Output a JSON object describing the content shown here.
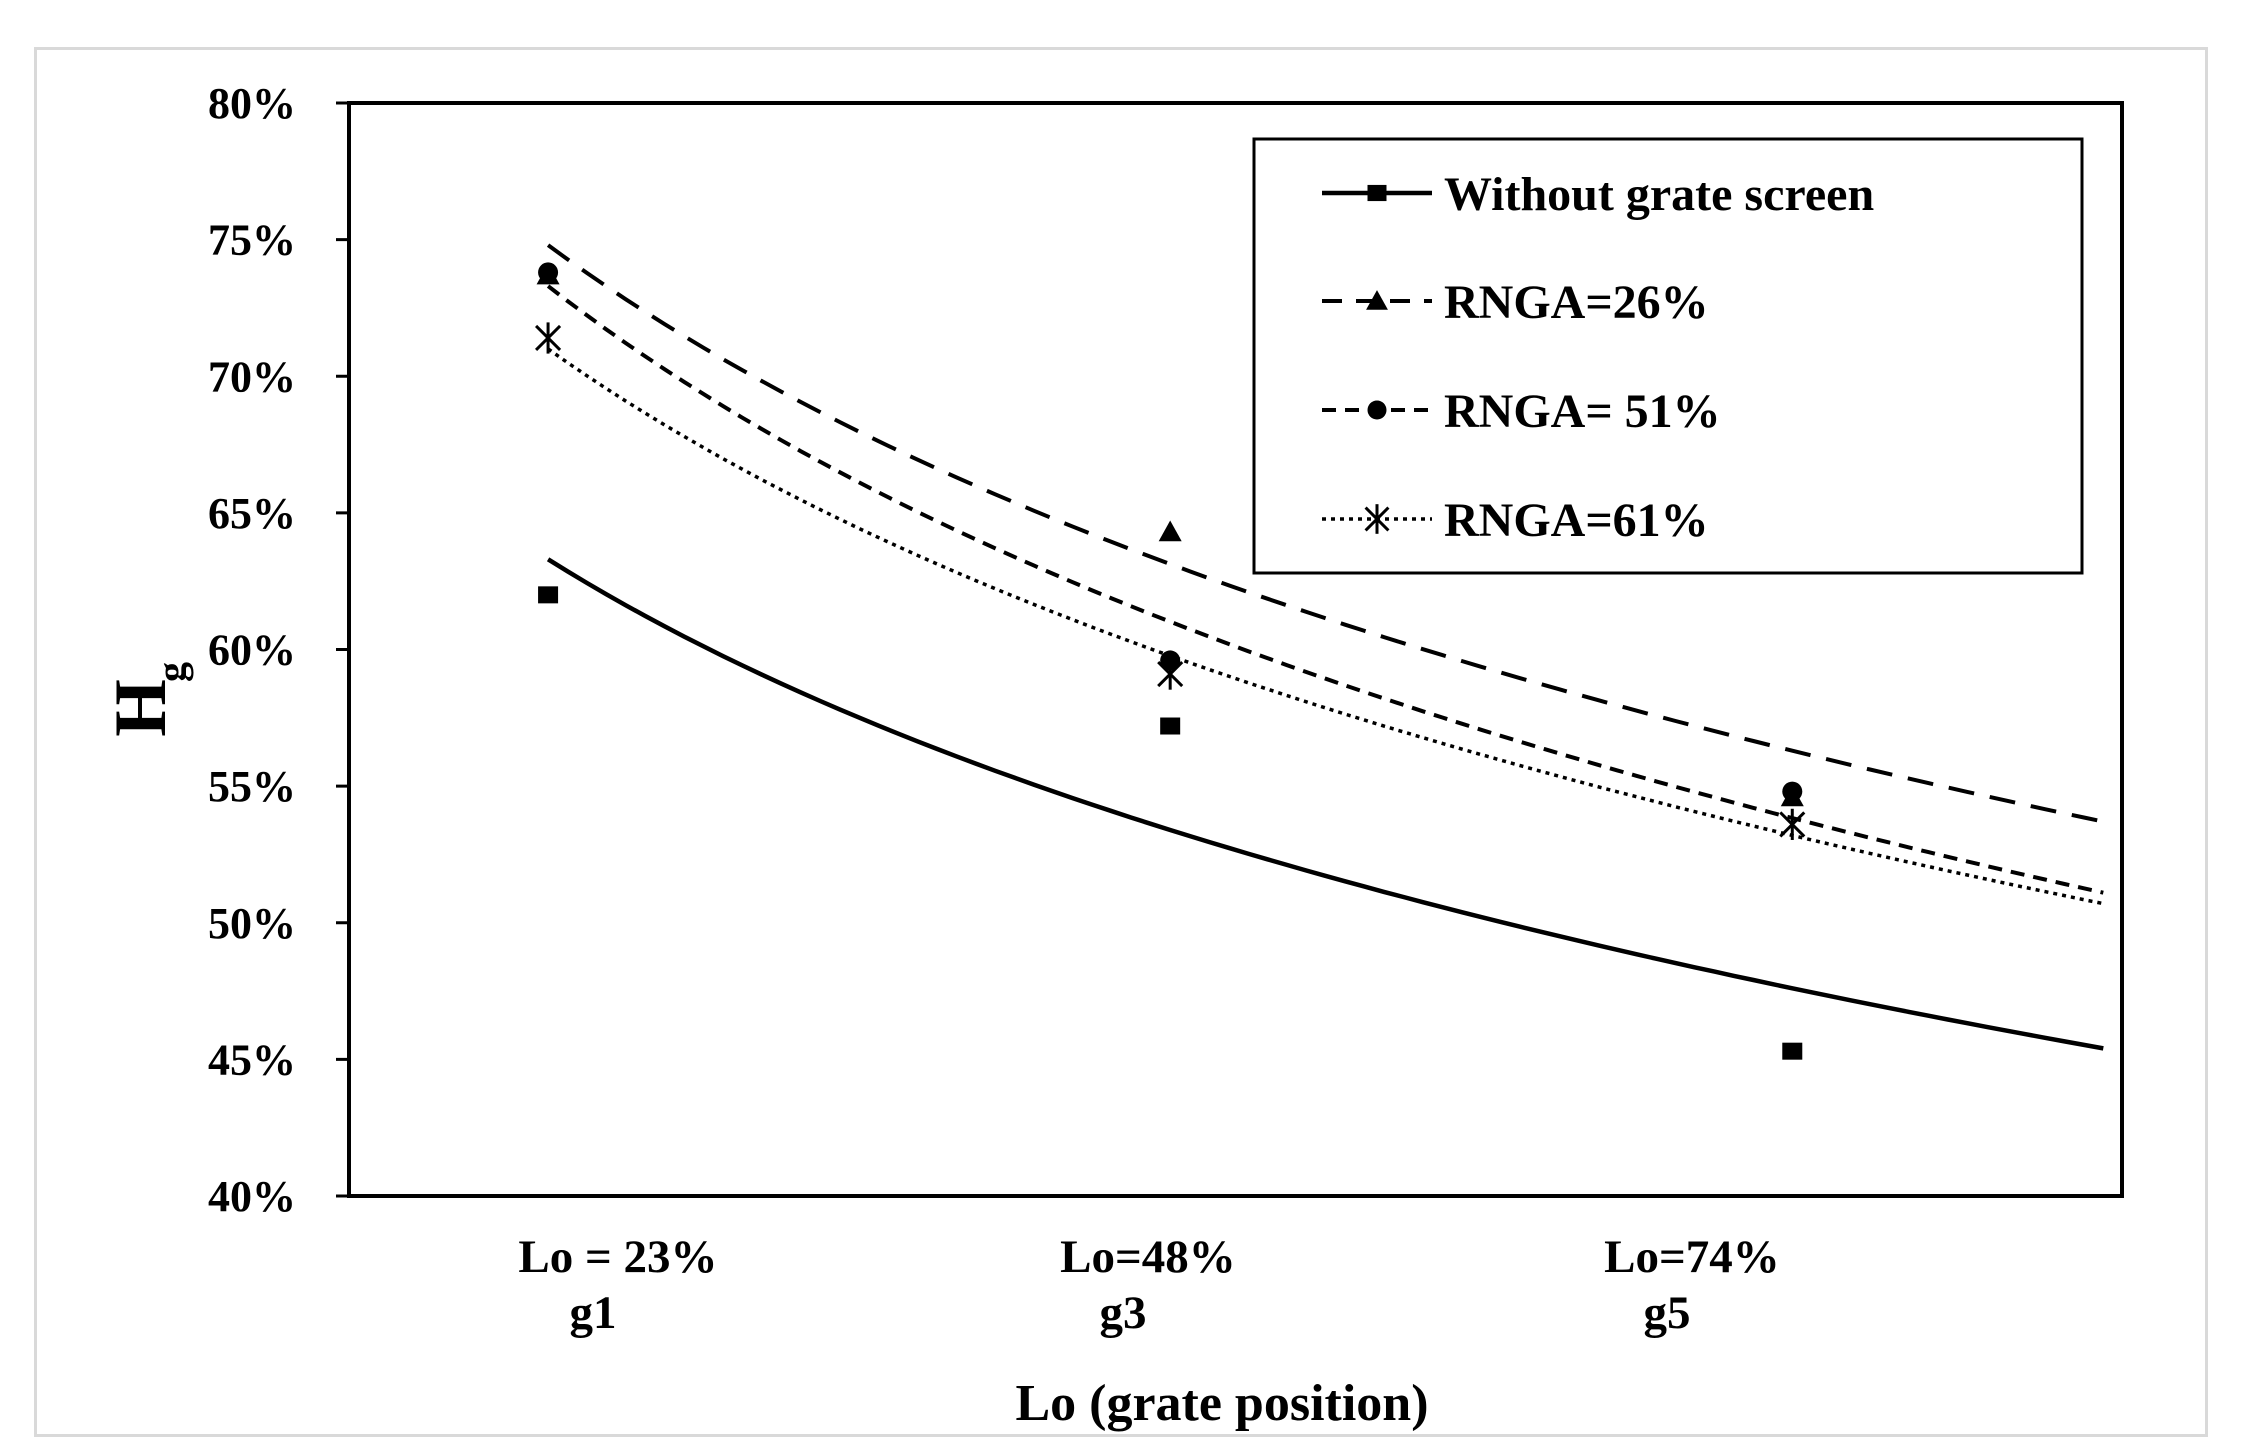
{
  "chart_data": {
    "type": "scatter",
    "title": "",
    "xlabel": "Lo (grate position)",
    "ylabel": "H",
    "ylabel_subscript": "g",
    "categories": [
      {
        "line1": "Lo = 23%",
        "line2": "g1"
      },
      {
        "line1": "Lo=48%",
        "line2": "g3"
      },
      {
        "line1": "Lo=74%",
        "line2": "g5"
      }
    ],
    "x": [
      1,
      2,
      3
    ],
    "xlim": [
      0.68,
      3.53
    ],
    "ylim": [
      40,
      80
    ],
    "yticks": [
      40,
      45,
      50,
      55,
      60,
      65,
      70,
      75,
      80
    ],
    "ytick_labels": [
      "40%",
      "45%",
      "50%",
      "55%",
      "60%",
      "65%",
      "70%",
      "75%",
      "80%"
    ],
    "grid": false,
    "legend_position": "top-right",
    "series": [
      {
        "name": "Without grate screen",
        "marker": "square",
        "line_style": "solid",
        "values": [
          62.0,
          57.2,
          45.3
        ],
        "trend": {
          "x_start": 1.0,
          "x_end": 3.5,
          "y_at_start": 63.3,
          "y_at_end": 45.4
        }
      },
      {
        "name": "RNGA=26%",
        "marker": "triangle",
        "line_style": "long-dash",
        "values": [
          73.7,
          64.3,
          54.6
        ],
        "trend": {
          "x_start": 1.0,
          "x_end": 3.5,
          "y_at_start": 74.8,
          "y_at_end": 53.7
        }
      },
      {
        "name": "RNGA= 51%",
        "marker": "circle",
        "line_style": "short-dash",
        "values": [
          73.8,
          59.6,
          54.8
        ],
        "trend": {
          "x_start": 1.0,
          "x_end": 3.5,
          "y_at_start": 73.3,
          "y_at_end": 51.1
        }
      },
      {
        "name": "RNGA=61%",
        "marker": "star",
        "line_style": "dotted",
        "values": [
          71.4,
          59.1,
          53.6
        ],
        "trend": {
          "x_start": 1.0,
          "x_end": 3.5,
          "y_at_start": 71.0,
          "y_at_end": 50.7
        }
      }
    ]
  }
}
